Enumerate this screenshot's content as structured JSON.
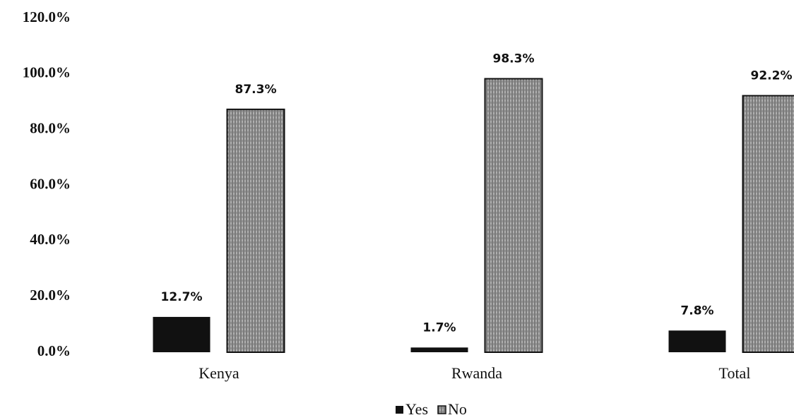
{
  "chart_data": {
    "type": "bar",
    "categories": [
      "Kenya",
      "Rwanda",
      "Total"
    ],
    "series": [
      {
        "name": "Yes",
        "color": "#111111",
        "values": [
          12.7,
          1.7,
          7.8
        ],
        "value_labels": [
          "12.7%",
          "1.7%",
          "7.8%"
        ]
      },
      {
        "name": "No",
        "color": "#8c8c8c",
        "values": [
          87.3,
          98.3,
          92.2
        ],
        "value_labels": [
          "87.3%",
          "98.3%",
          "92.2%"
        ]
      }
    ],
    "ylim": [
      0,
      120
    ],
    "yticks": [
      {
        "value": 0,
        "label": "0.0%"
      },
      {
        "value": 20,
        "label": "20.0%"
      },
      {
        "value": 40,
        "label": "40.0%"
      },
      {
        "value": 60,
        "label": "60.0%"
      },
      {
        "value": 80,
        "label": "80.0%"
      },
      {
        "value": 100,
        "label": "100.0%"
      },
      {
        "value": 120,
        "label": "120.0%"
      }
    ],
    "grid": false,
    "legend": "bottom"
  }
}
